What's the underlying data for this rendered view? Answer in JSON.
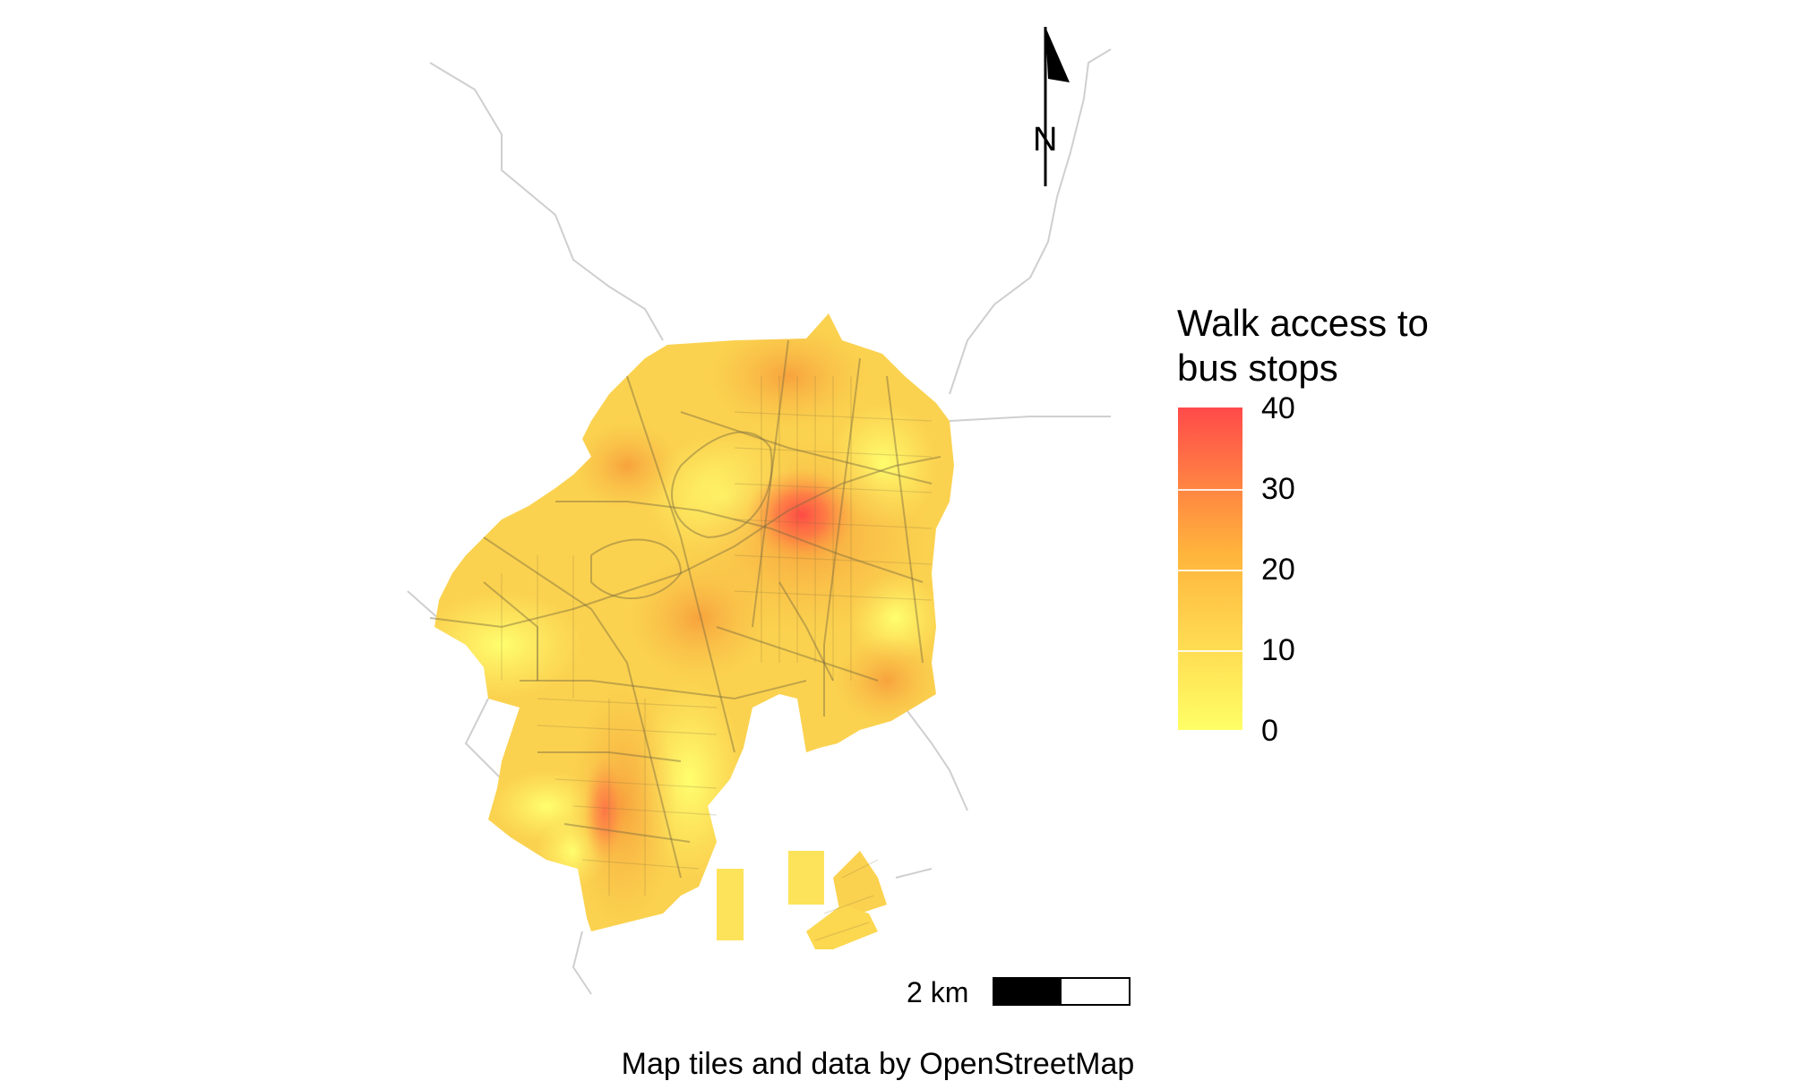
{
  "map": {
    "caption": "Map tiles and data by OpenStreetMap",
    "north_label": "N",
    "scale_label": "2 km"
  },
  "legend": {
    "title_line1": "Walk access to",
    "title_line2": "bus stops",
    "ticks": [
      "40",
      "30",
      "20",
      "10",
      "0"
    ],
    "range": [
      0,
      40
    ],
    "color_low": "#ffff66",
    "color_mid": "#ffb43c",
    "color_high": "#ff4a4a"
  }
}
